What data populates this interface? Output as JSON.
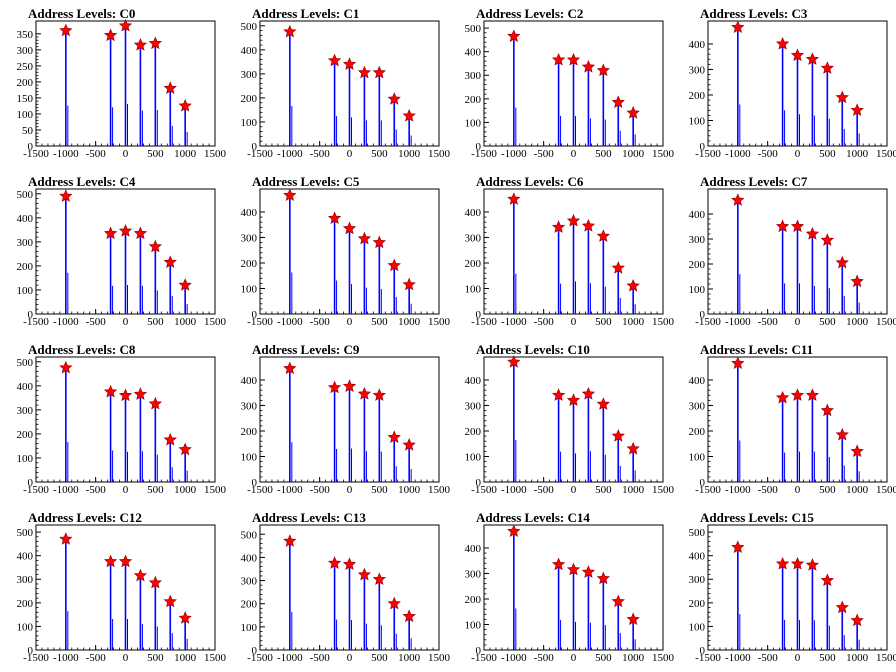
{
  "colors": {
    "bar": "#0000ff",
    "marker_fill": "#ff0000",
    "marker_stroke": "#8b0000",
    "frame": "#000000"
  },
  "chart_data": [
    {
      "type": "bar",
      "title": "Address Levels: C0",
      "xlim": [
        -1500,
        1500
      ],
      "ylim": [
        0,
        390
      ],
      "yticks": [
        0,
        50,
        100,
        150,
        200,
        250,
        300,
        350
      ],
      "xticks": [
        -1500,
        -1000,
        -500,
        0,
        500,
        1000,
        1500
      ],
      "xtick_labels": [
        "-1500",
        "-1000",
        "-500",
        "0",
        "500",
        "1000",
        "1500"
      ],
      "peaks": {
        "x": [
          -1000,
          -250,
          0,
          250,
          500,
          750,
          1000
        ],
        "y": [
          360,
          345,
          375,
          315,
          320,
          180,
          125
        ]
      }
    },
    {
      "type": "bar",
      "title": "Address Levels: C1",
      "xlim": [
        -1500,
        1500
      ],
      "ylim": [
        0,
        520
      ],
      "yticks": [
        0,
        100,
        200,
        300,
        400,
        500
      ],
      "xticks": [
        -1500,
        -1000,
        -500,
        0,
        500,
        1000,
        1500
      ],
      "xtick_labels": [
        "-1500",
        "-1000",
        "-500",
        "0",
        "500",
        "1000",
        "1500"
      ],
      "peaks": {
        "x": [
          -1000,
          -250,
          0,
          250,
          500,
          750,
          1000
        ],
        "y": [
          475,
          355,
          340,
          305,
          305,
          195,
          125
        ]
      }
    },
    {
      "type": "bar",
      "title": "Address Levels: C2",
      "xlim": [
        -1500,
        1500
      ],
      "ylim": [
        0,
        530
      ],
      "yticks": [
        0,
        100,
        200,
        300,
        400,
        500
      ],
      "xticks": [
        -1500,
        -1000,
        -500,
        0,
        500,
        1000,
        1500
      ],
      "xtick_labels": [
        "-1500",
        "-1000",
        "-500",
        "0",
        "500",
        "1000",
        "1500"
      ],
      "peaks": {
        "x": [
          -1000,
          -250,
          0,
          250,
          500,
          750,
          1000
        ],
        "y": [
          465,
          365,
          365,
          335,
          320,
          185,
          140
        ]
      }
    },
    {
      "type": "bar",
      "title": "Address Levels: C3",
      "xlim": [
        -1500,
        1500
      ],
      "ylim": [
        0,
        490
      ],
      "yticks": [
        0,
        100,
        200,
        300,
        400
      ],
      "xticks": [
        -1500,
        -1000,
        -500,
        0,
        500,
        1000,
        1500
      ],
      "xtick_labels": [
        "-1500",
        "-1000",
        "-500",
        "0",
        "500",
        "1000",
        "1500"
      ],
      "peaks": {
        "x": [
          -1000,
          -250,
          0,
          250,
          500,
          750,
          1000
        ],
        "y": [
          465,
          400,
          355,
          340,
          305,
          190,
          140
        ]
      }
    },
    {
      "type": "bar",
      "title": "Address Levels: C4",
      "xlim": [
        -1500,
        1500
      ],
      "ylim": [
        0,
        520
      ],
      "yticks": [
        0,
        100,
        200,
        300,
        400,
        500
      ],
      "xticks": [
        -1500,
        -1000,
        -500,
        0,
        500,
        1000,
        1500
      ],
      "xtick_labels": [
        "-1500",
        "-1000",
        "-500",
        "0",
        "500",
        "1000",
        "1500"
      ],
      "peaks": {
        "x": [
          -1000,
          -250,
          0,
          250,
          500,
          750,
          1000
        ],
        "y": [
          490,
          335,
          345,
          335,
          280,
          215,
          120
        ]
      }
    },
    {
      "type": "bar",
      "title": "Address Levels: C5",
      "xlim": [
        -1500,
        1500
      ],
      "ylim": [
        0,
        490
      ],
      "yticks": [
        0,
        100,
        200,
        300,
        400
      ],
      "xticks": [
        -1500,
        -1000,
        -500,
        0,
        500,
        1000,
        1500
      ],
      "xtick_labels": [
        "-1500",
        "-1000",
        "-500",
        "0",
        "500",
        "1000",
        "1500"
      ],
      "peaks": {
        "x": [
          -1000,
          -250,
          0,
          250,
          500,
          750,
          1000
        ],
        "y": [
          465,
          375,
          335,
          295,
          280,
          190,
          115
        ]
      }
    },
    {
      "type": "bar",
      "title": "Address Levels: C6",
      "xlim": [
        -1500,
        1500
      ],
      "ylim": [
        0,
        490
      ],
      "yticks": [
        0,
        100,
        200,
        300,
        400
      ],
      "xticks": [
        -1500,
        -1000,
        -500,
        0,
        500,
        1000,
        1500
      ],
      "xtick_labels": [
        "-1500",
        "-1000",
        "-500",
        "0",
        "500",
        "1000",
        "1500"
      ],
      "peaks": {
        "x": [
          -1000,
          -250,
          0,
          250,
          500,
          750,
          1000
        ],
        "y": [
          450,
          340,
          365,
          345,
          305,
          180,
          110
        ]
      }
    },
    {
      "type": "bar",
      "title": "Address Levels: C7",
      "xlim": [
        -1500,
        1500
      ],
      "ylim": [
        0,
        500
      ],
      "yticks": [
        0,
        100,
        200,
        300,
        400
      ],
      "xticks": [
        -1500,
        -1000,
        -500,
        0,
        500,
        1000,
        1500
      ],
      "xtick_labels": [
        "-1500",
        "-1000",
        "-500",
        "0",
        "500",
        "1000",
        "1500"
      ],
      "peaks": {
        "x": [
          -1000,
          -250,
          0,
          250,
          500,
          750,
          1000
        ],
        "y": [
          455,
          350,
          350,
          320,
          295,
          205,
          130
        ]
      }
    },
    {
      "type": "bar",
      "title": "Address Levels: C8",
      "xlim": [
        -1500,
        1500
      ],
      "ylim": [
        0,
        520
      ],
      "yticks": [
        0,
        100,
        200,
        300,
        400,
        500
      ],
      "xticks": [
        -1500,
        -1000,
        -500,
        0,
        500,
        1000,
        1500
      ],
      "xtick_labels": [
        "-1500",
        "-1000",
        "-500",
        "0",
        "500",
        "1000",
        "1500"
      ],
      "peaks": {
        "x": [
          -1000,
          -250,
          0,
          250,
          500,
          750,
          1000
        ],
        "y": [
          475,
          375,
          360,
          365,
          325,
          175,
          135
        ]
      }
    },
    {
      "type": "bar",
      "title": "Address Levels: C9",
      "xlim": [
        -1500,
        1500
      ],
      "ylim": [
        0,
        490
      ],
      "yticks": [
        0,
        100,
        200,
        300,
        400
      ],
      "xticks": [
        -1500,
        -1000,
        -500,
        0,
        500,
        1000,
        1500
      ],
      "xtick_labels": [
        "-1500",
        "-1000",
        "-500",
        "0",
        "500",
        "1000",
        "1500"
      ],
      "peaks": {
        "x": [
          -1000,
          -250,
          0,
          250,
          500,
          750,
          1000
        ],
        "y": [
          445,
          370,
          375,
          345,
          340,
          175,
          145
        ]
      }
    },
    {
      "type": "bar",
      "title": "Address Levels: C10",
      "xlim": [
        -1500,
        1500
      ],
      "ylim": [
        0,
        490
      ],
      "yticks": [
        0,
        100,
        200,
        300,
        400
      ],
      "xticks": [
        -1500,
        -1000,
        -500,
        0,
        500,
        1000,
        1500
      ],
      "xtick_labels": [
        "-1500",
        "-1000",
        "-500",
        "0",
        "500",
        "1000",
        "1500"
      ],
      "peaks": {
        "x": [
          -1000,
          -250,
          0,
          250,
          500,
          750,
          1000
        ],
        "y": [
          470,
          340,
          320,
          345,
          305,
          180,
          130
        ]
      }
    },
    {
      "type": "bar",
      "title": "Address Levels: C11",
      "xlim": [
        -1500,
        1500
      ],
      "ylim": [
        0,
        490
      ],
      "yticks": [
        0,
        100,
        200,
        300,
        400
      ],
      "xticks": [
        -1500,
        -1000,
        -500,
        0,
        500,
        1000,
        1500
      ],
      "xtick_labels": [
        "-1500",
        "-1000",
        "-500",
        "0",
        "500",
        "1000",
        "1500"
      ],
      "peaks": {
        "x": [
          -1000,
          -250,
          0,
          250,
          500,
          750,
          1000
        ],
        "y": [
          465,
          330,
          340,
          340,
          280,
          185,
          120
        ]
      }
    },
    {
      "type": "bar",
      "title": "Address Levels: C12",
      "xlim": [
        -1500,
        1500
      ],
      "ylim": [
        0,
        530
      ],
      "yticks": [
        0,
        100,
        200,
        300,
        400,
        500
      ],
      "xticks": [
        -1500,
        -1000,
        -500,
        0,
        500,
        1000,
        1500
      ],
      "xtick_labels": [
        "-1500",
        "-1000",
        "-500",
        "0",
        "500",
        "1000",
        "1500"
      ],
      "peaks": {
        "x": [
          -1000,
          -250,
          0,
          250,
          500,
          750,
          1000
        ],
        "y": [
          470,
          375,
          375,
          315,
          285,
          205,
          135
        ]
      }
    },
    {
      "type": "bar",
      "title": "Address Levels: C13",
      "xlim": [
        -1500,
        1500
      ],
      "ylim": [
        0,
        540
      ],
      "yticks": [
        0,
        100,
        200,
        300,
        400,
        500
      ],
      "xticks": [
        -1500,
        -1000,
        -500,
        0,
        500,
        1000,
        1500
      ],
      "xtick_labels": [
        "-1500",
        "-1000",
        "-500",
        "0",
        "500",
        "1000",
        "1500"
      ],
      "peaks": {
        "x": [
          -1000,
          -250,
          0,
          250,
          500,
          750,
          1000
        ],
        "y": [
          470,
          375,
          370,
          325,
          305,
          200,
          145
        ]
      }
    },
    {
      "type": "bar",
      "title": "Address Levels: C14",
      "xlim": [
        -1500,
        1500
      ],
      "ylim": [
        0,
        490
      ],
      "yticks": [
        0,
        100,
        200,
        300,
        400
      ],
      "xticks": [
        -1500,
        -1000,
        -500,
        0,
        500,
        1000,
        1500
      ],
      "xtick_labels": [
        "-1500",
        "-1000",
        "-500",
        "0",
        "500",
        "1000",
        "1500"
      ],
      "peaks": {
        "x": [
          -1000,
          -250,
          0,
          250,
          500,
          750,
          1000
        ],
        "y": [
          465,
          335,
          315,
          305,
          280,
          190,
          120
        ]
      }
    },
    {
      "type": "bar",
      "title": "Address Levels: C15",
      "xlim": [
        -1500,
        1500
      ],
      "ylim": [
        0,
        530
      ],
      "yticks": [
        0,
        100,
        200,
        300,
        400,
        500
      ],
      "xticks": [
        -1500,
        -1000,
        -500,
        0,
        500,
        1000,
        1500
      ],
      "xtick_labels": [
        "-1500",
        "-1000",
        "-500",
        "0",
        "500",
        "1000",
        "1500"
      ],
      "peaks": {
        "x": [
          -1000,
          -250,
          0,
          250,
          500,
          750,
          1000
        ],
        "y": [
          435,
          365,
          365,
          360,
          295,
          180,
          125
        ]
      }
    }
  ]
}
